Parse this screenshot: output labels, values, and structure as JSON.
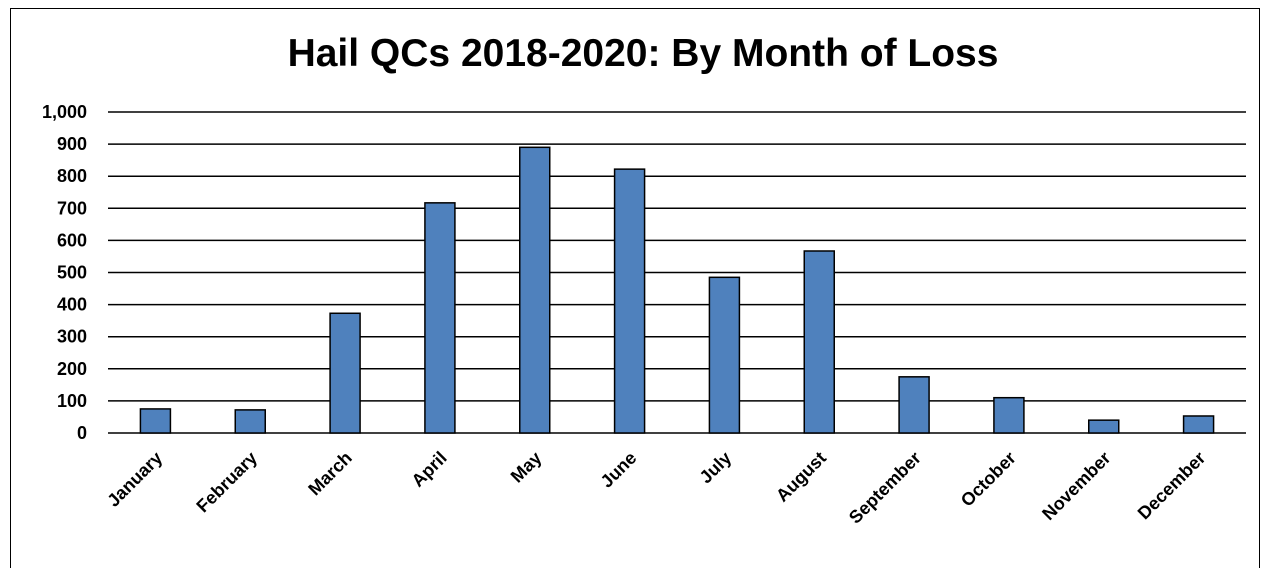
{
  "chart_data": {
    "type": "bar",
    "title": "Hail QCs 2018-2020: By Month of Loss",
    "xlabel": "",
    "ylabel": "",
    "categories": [
      "January",
      "February",
      "March",
      "April",
      "May",
      "June",
      "July",
      "August",
      "September",
      "October",
      "November",
      "December"
    ],
    "values": [
      75,
      72,
      373,
      717,
      890,
      822,
      485,
      567,
      175,
      110,
      40,
      53
    ],
    "ylim": [
      0,
      1000
    ],
    "yticks": [
      0,
      100,
      200,
      300,
      400,
      500,
      600,
      700,
      800,
      900,
      1000
    ],
    "ytick_labels": [
      "0",
      "100",
      "200",
      "300",
      "400",
      "500",
      "600",
      "700",
      "800",
      "900",
      "1,000"
    ],
    "grid": true,
    "legend": "none",
    "bar_color": "#4f81bd"
  }
}
